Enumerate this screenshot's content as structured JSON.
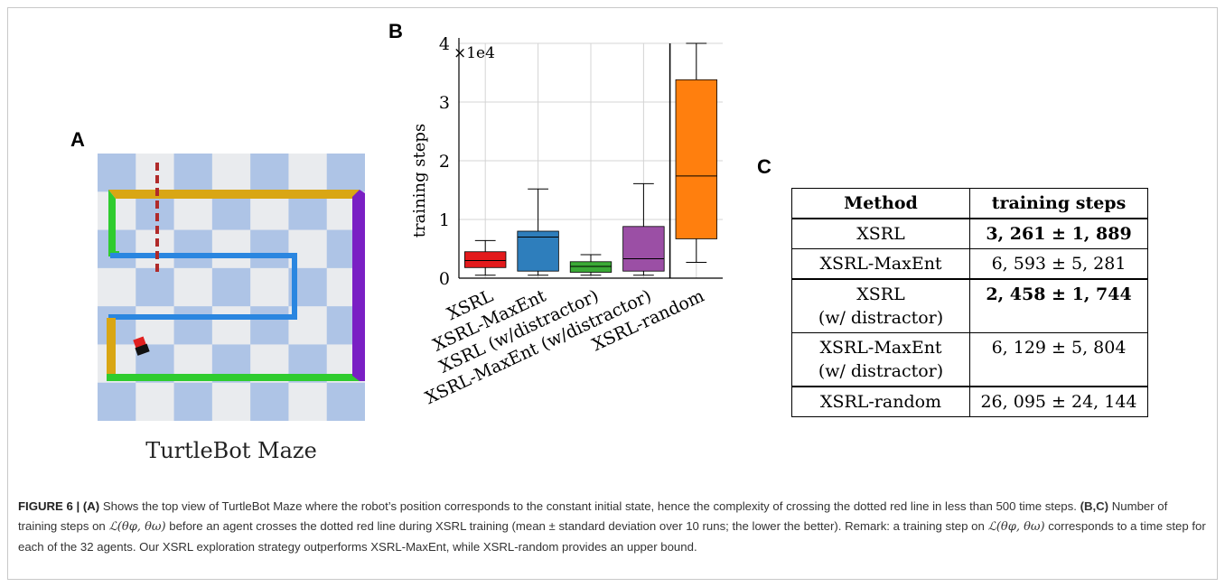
{
  "panels": {
    "a": "A",
    "b": "B",
    "c": "C"
  },
  "maze": {
    "caption": "TurtleBot Maze",
    "colors": {
      "checker_light": "#e9ebee",
      "checker_blue": "#aec4e6",
      "wall_yellow": "#d9a614",
      "wall_green": "#2fcc2f",
      "wall_blue": "#2a86e0",
      "wall_purple": "#7a1fc4",
      "dotted_line": "#b02a2a"
    }
  },
  "chart_data": {
    "type": "box",
    "ylabel": "training steps",
    "y_multiplier_label": "×1e4",
    "ylim": [
      0,
      4
    ],
    "yticks": [
      0,
      1,
      2,
      3,
      4
    ],
    "grid": true,
    "categories": [
      "XSRL",
      "XSRL-MaxEnt",
      "XSRL (w/distractor)",
      "XSRL-MaxEnt (w/distractor)",
      "XSRL-random"
    ],
    "series": [
      {
        "category": "XSRL",
        "whisker_low": 0.05,
        "q1": 0.18,
        "median": 0.3,
        "q3": 0.45,
        "whisker_high": 0.64,
        "color": "#e31a1c"
      },
      {
        "category": "XSRL-MaxEnt",
        "whisker_low": 0.05,
        "q1": 0.12,
        "median": 0.7,
        "q3": 0.8,
        "whisker_high": 1.52,
        "color": "#2e7ebc"
      },
      {
        "category": "XSRL (w/distractor)",
        "whisker_low": 0.05,
        "q1": 0.1,
        "median": 0.2,
        "q3": 0.28,
        "whisker_high": 0.4,
        "color": "#3aa935"
      },
      {
        "category": "XSRL-MaxEnt (w/distractor)",
        "whisker_low": 0.05,
        "q1": 0.12,
        "median": 0.33,
        "q3": 0.88,
        "whisker_high": 1.61,
        "color": "#9b4fa5"
      },
      {
        "category": "XSRL-random",
        "whisker_low": 0.27,
        "q1": 0.67,
        "median": 1.74,
        "q3": 3.38,
        "whisker_high": 4.0,
        "color": "#ff7f0e"
      }
    ]
  },
  "table": {
    "headers": [
      "Method",
      "training steps"
    ],
    "rows": [
      {
        "method": "XSRL",
        "method2": "",
        "value": "3, 261 ± 1, 889",
        "bold": true
      },
      {
        "method": "XSRL-MaxEnt",
        "method2": "",
        "value": "6, 593 ± 5, 281",
        "bold": false
      },
      {
        "method": "XSRL",
        "method2": "(w/ distractor)",
        "value": "2, 458 ± 1, 744",
        "bold": true
      },
      {
        "method": "XSRL-MaxEnt",
        "method2": "(w/ distractor)",
        "value": "6, 129 ± 5, 804",
        "bold": false
      },
      {
        "method": "XSRL-random",
        "method2": "",
        "value": "26, 095 ± 24, 144",
        "bold": false
      }
    ]
  },
  "caption": {
    "label": "FIGURE 6 | (A)",
    "part1": " Shows the top view of TurtleBot Maze where the robot’s position corresponds to the constant initial state, hence the complexity of crossing the dotted red line in less than 500 time steps. ",
    "bc": "(B,C)",
    "part2": " Number of training steps on ",
    "loss": "ℒ(θφ, θω)",
    "part3": " before an agent crosses the dotted red line during XSRL training (mean ± standard deviation over 10 runs; the lower the better). Remark: a training step on ",
    "part4": " corresponds to a time step for each of the 32 agents. Our XSRL exploration strategy outperforms XSRL-MaxEnt, while XSRL-random provides an upper bound."
  }
}
